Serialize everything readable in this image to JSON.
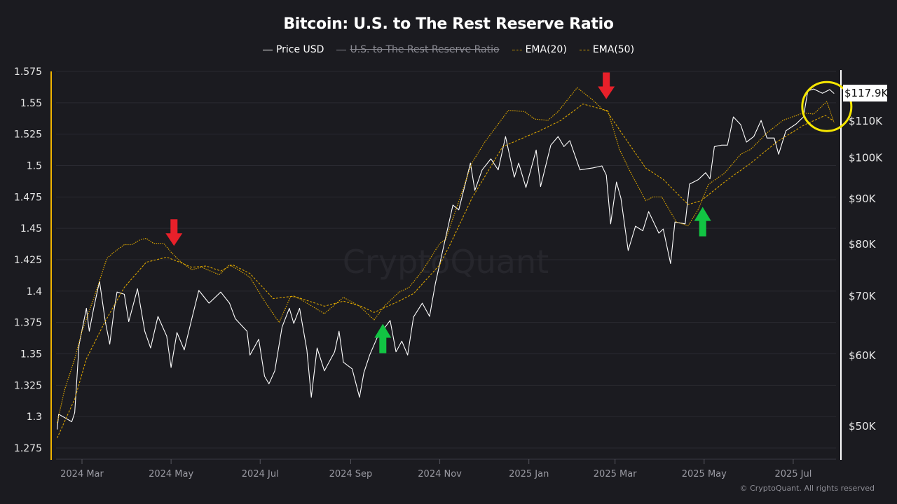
{
  "chart_data": {
    "type": "line",
    "title": "Bitcoin: U.S. to The Rest Reserve Ratio",
    "legend": [
      {
        "name": "Price USD",
        "color": "#ffffff",
        "style": "solid",
        "visible": true
      },
      {
        "name": "U.S. to The Rest Reserve Ratio",
        "color": "#8a8a92",
        "style": "solid",
        "visible": false
      },
      {
        "name": "EMA(20)",
        "color": "#d9a300",
        "style": "dotted",
        "visible": true
      },
      {
        "name": "EMA(50)",
        "color": "#d9a300",
        "style": "dashed",
        "visible": true
      }
    ],
    "legend_position": "top-center",
    "grid": true,
    "x_axis": {
      "type": "date",
      "ticks": [
        "2024 Mar",
        "2024 May",
        "2024 Jul",
        "2024 Sep",
        "2024 Nov",
        "2025 Jan",
        "2025 Mar",
        "2025 May",
        "2025 Jul"
      ],
      "tick_dates": [
        "2024-03-01",
        "2024-05-01",
        "2024-07-01",
        "2024-09-01",
        "2024-11-01",
        "2025-01-01",
        "2025-03-01",
        "2025-05-01",
        "2025-07-01"
      ]
    },
    "y_left": {
      "range": [
        1.275,
        1.575
      ],
      "ticks": [
        "1.575",
        "1.55",
        "1.525",
        "1.5",
        "1.475",
        "1.45",
        "1.425",
        "1.4",
        "1.375",
        "1.35",
        "1.325",
        "1.3",
        "1.275"
      ],
      "color": "#f0b400"
    },
    "y_right": {
      "scale": "log",
      "ticks": [
        "$50K",
        "$60K",
        "$70K",
        "$80K",
        "$90K",
        "$100K",
        "$110K"
      ],
      "tick_values": [
        50000,
        60000,
        70000,
        80000,
        90000,
        100000,
        110000
      ],
      "color": "#ffffff"
    },
    "last_price_label": "$117.9K",
    "series": [
      {
        "name": "Price USD",
        "axis": "right",
        "points": [
          [
            "2024-02-13",
            49500
          ],
          [
            "2024-02-14",
            51500
          ],
          [
            "2024-02-23",
            50500
          ],
          [
            "2024-02-25",
            51700
          ],
          [
            "2024-02-28",
            61600
          ],
          [
            "2024-03-04",
            67700
          ],
          [
            "2024-03-06",
            63800
          ],
          [
            "2024-03-09",
            67700
          ],
          [
            "2024-03-13",
            72600
          ],
          [
            "2024-03-17",
            65400
          ],
          [
            "2024-03-20",
            61700
          ],
          [
            "2024-03-23",
            67400
          ],
          [
            "2024-03-25",
            70600
          ],
          [
            "2024-03-30",
            70200
          ],
          [
            "2024-04-02",
            65400
          ],
          [
            "2024-04-08",
            71200
          ],
          [
            "2024-04-13",
            63800
          ],
          [
            "2024-04-17",
            61100
          ],
          [
            "2024-04-22",
            66300
          ],
          [
            "2024-04-28",
            63000
          ],
          [
            "2024-05-01",
            58100
          ],
          [
            "2024-05-05",
            63600
          ],
          [
            "2024-05-10",
            60800
          ],
          [
            "2024-05-15",
            65700
          ],
          [
            "2024-05-20",
            70900
          ],
          [
            "2024-05-27",
            68600
          ],
          [
            "2024-06-04",
            70600
          ],
          [
            "2024-06-10",
            68600
          ],
          [
            "2024-06-14",
            65900
          ],
          [
            "2024-06-22",
            63800
          ],
          [
            "2024-06-24",
            60000
          ],
          [
            "2024-06-30",
            62500
          ],
          [
            "2024-07-04",
            56800
          ],
          [
            "2024-07-07",
            55700
          ],
          [
            "2024-07-11",
            57600
          ],
          [
            "2024-07-16",
            64500
          ],
          [
            "2024-07-21",
            67700
          ],
          [
            "2024-07-24",
            65100
          ],
          [
            "2024-07-28",
            67700
          ],
          [
            "2024-08-02",
            60800
          ],
          [
            "2024-08-05",
            53800
          ],
          [
            "2024-08-09",
            61100
          ],
          [
            "2024-08-14",
            57600
          ],
          [
            "2024-08-21",
            60500
          ],
          [
            "2024-08-24",
            63800
          ],
          [
            "2024-08-27",
            58900
          ],
          [
            "2024-09-02",
            57900
          ],
          [
            "2024-09-07",
            53800
          ],
          [
            "2024-09-10",
            57300
          ],
          [
            "2024-09-14",
            60000
          ],
          [
            "2024-09-19",
            62700
          ],
          [
            "2024-09-28",
            65600
          ],
          [
            "2024-10-02",
            60500
          ],
          [
            "2024-10-06",
            62200
          ],
          [
            "2024-10-10",
            60000
          ],
          [
            "2024-10-14",
            66200
          ],
          [
            "2024-10-20",
            68600
          ],
          [
            "2024-10-25",
            66300
          ],
          [
            "2024-10-29",
            72200
          ],
          [
            "2024-11-10",
            88400
          ],
          [
            "2024-11-14",
            87300
          ],
          [
            "2024-11-22",
            98500
          ],
          [
            "2024-11-25",
            91800
          ],
          [
            "2024-11-30",
            96800
          ],
          [
            "2024-12-06",
            99600
          ],
          [
            "2024-12-11",
            96800
          ],
          [
            "2024-12-16",
            105500
          ],
          [
            "2024-12-22",
            95000
          ],
          [
            "2024-12-25",
            98500
          ],
          [
            "2024-12-30",
            92500
          ],
          [
            "2025-01-06",
            101900
          ],
          [
            "2025-01-09",
            92700
          ],
          [
            "2025-01-16",
            103200
          ],
          [
            "2025-01-21",
            105500
          ],
          [
            "2025-01-25",
            102800
          ],
          [
            "2025-01-29",
            104400
          ],
          [
            "2025-02-05",
            96800
          ],
          [
            "2025-02-14",
            97300
          ],
          [
            "2025-02-20",
            97800
          ],
          [
            "2025-02-23",
            95500
          ],
          [
            "2025-02-26",
            84200
          ],
          [
            "2025-03-02",
            93800
          ],
          [
            "2025-03-05",
            90000
          ],
          [
            "2025-03-10",
            78600
          ],
          [
            "2025-03-15",
            83700
          ],
          [
            "2025-03-20",
            82700
          ],
          [
            "2025-03-24",
            86900
          ],
          [
            "2025-03-31",
            82200
          ],
          [
            "2025-04-03",
            83100
          ],
          [
            "2025-04-08",
            76000
          ],
          [
            "2025-04-11",
            84600
          ],
          [
            "2025-04-18",
            84200
          ],
          [
            "2025-04-21",
            93300
          ],
          [
            "2025-04-27",
            94400
          ],
          [
            "2025-05-02",
            96100
          ],
          [
            "2025-05-05",
            94600
          ],
          [
            "2025-05-08",
            102800
          ],
          [
            "2025-05-13",
            103200
          ],
          [
            "2025-05-17",
            103200
          ],
          [
            "2025-05-21",
            111000
          ],
          [
            "2025-05-26",
            108800
          ],
          [
            "2025-05-30",
            104000
          ],
          [
            "2025-06-04",
            105500
          ],
          [
            "2025-06-09",
            110000
          ],
          [
            "2025-06-13",
            105100
          ],
          [
            "2025-06-18",
            105100
          ],
          [
            "2025-06-21",
            100800
          ],
          [
            "2025-06-26",
            107100
          ],
          [
            "2025-07-03",
            109000
          ],
          [
            "2025-07-08",
            111000
          ],
          [
            "2025-07-11",
            118700
          ],
          [
            "2025-07-15",
            119300
          ],
          [
            "2025-07-21",
            118000
          ],
          [
            "2025-07-26",
            119100
          ],
          [
            "2025-07-29",
            117900
          ]
        ]
      },
      {
        "name": "EMA(20)",
        "axis": "left",
        "points": [
          [
            "2024-02-13",
            1.295
          ],
          [
            "2024-02-18",
            1.321
          ],
          [
            "2024-02-25",
            1.346
          ],
          [
            "2024-03-01",
            1.368
          ],
          [
            "2024-03-09",
            1.394
          ],
          [
            "2024-03-18",
            1.426
          ],
          [
            "2024-03-23",
            1.431
          ],
          [
            "2024-03-30",
            1.437
          ],
          [
            "2024-04-04",
            1.437
          ],
          [
            "2024-04-10",
            1.441
          ],
          [
            "2024-04-14",
            1.442
          ],
          [
            "2024-04-19",
            1.438
          ],
          [
            "2024-04-26",
            1.438
          ],
          [
            "2024-05-01",
            1.431
          ],
          [
            "2024-05-07",
            1.424
          ],
          [
            "2024-05-15",
            1.417
          ],
          [
            "2024-05-22",
            1.419
          ],
          [
            "2024-06-03",
            1.413
          ],
          [
            "2024-06-10",
            1.421
          ],
          [
            "2024-06-16",
            1.417
          ],
          [
            "2024-06-24",
            1.411
          ],
          [
            "2024-07-04",
            1.392
          ],
          [
            "2024-07-14",
            1.375
          ],
          [
            "2024-07-22",
            1.396
          ],
          [
            "2024-07-28",
            1.394
          ],
          [
            "2024-08-14",
            1.382
          ],
          [
            "2024-08-27",
            1.395
          ],
          [
            "2024-09-07",
            1.388
          ],
          [
            "2024-09-17",
            1.377
          ],
          [
            "2024-09-24",
            1.388
          ],
          [
            "2024-10-04",
            1.399
          ],
          [
            "2024-10-11",
            1.403
          ],
          [
            "2024-10-20",
            1.416
          ],
          [
            "2024-11-01",
            1.438
          ],
          [
            "2024-11-05",
            1.441
          ],
          [
            "2024-11-23",
            1.502
          ],
          [
            "2024-12-02",
            1.519
          ],
          [
            "2024-12-18",
            1.544
          ],
          [
            "2024-12-29",
            1.543
          ],
          [
            "2025-01-05",
            1.537
          ],
          [
            "2025-01-14",
            1.536
          ],
          [
            "2025-01-21",
            1.543
          ],
          [
            "2025-02-03",
            1.562
          ],
          [
            "2025-02-14",
            1.552
          ],
          [
            "2025-02-21",
            1.544
          ],
          [
            "2025-02-24",
            1.544
          ],
          [
            "2025-03-04",
            1.513
          ],
          [
            "2025-03-11",
            1.496
          ],
          [
            "2025-03-22",
            1.472
          ],
          [
            "2025-03-27",
            1.475
          ],
          [
            "2025-04-02",
            1.475
          ],
          [
            "2025-04-12",
            1.455
          ],
          [
            "2025-04-20",
            1.452
          ],
          [
            "2025-04-27",
            1.465
          ],
          [
            "2025-05-04",
            1.485
          ],
          [
            "2025-05-15",
            1.494
          ],
          [
            "2025-05-26",
            1.509
          ],
          [
            "2025-06-02",
            1.513
          ],
          [
            "2025-06-13",
            1.526
          ],
          [
            "2025-06-24",
            1.536
          ],
          [
            "2025-07-08",
            1.542
          ],
          [
            "2025-07-15",
            1.541
          ],
          [
            "2025-07-24",
            1.551
          ],
          [
            "2025-07-29",
            1.534
          ]
        ]
      },
      {
        "name": "EMA(50)",
        "axis": "left",
        "points": [
          [
            "2024-02-13",
            1.283
          ],
          [
            "2024-02-25",
            1.314
          ],
          [
            "2024-03-04",
            1.346
          ],
          [
            "2024-03-16",
            1.374
          ],
          [
            "2024-03-30",
            1.403
          ],
          [
            "2024-04-14",
            1.423
          ],
          [
            "2024-04-28",
            1.427
          ],
          [
            "2024-05-07",
            1.423
          ],
          [
            "2024-05-15",
            1.419
          ],
          [
            "2024-05-25",
            1.42
          ],
          [
            "2024-06-04",
            1.416
          ],
          [
            "2024-06-12",
            1.421
          ],
          [
            "2024-06-24",
            1.414
          ],
          [
            "2024-07-10",
            1.394
          ],
          [
            "2024-07-24",
            1.396
          ],
          [
            "2024-08-14",
            1.388
          ],
          [
            "2024-08-27",
            1.392
          ],
          [
            "2024-09-08",
            1.388
          ],
          [
            "2024-09-17",
            1.383
          ],
          [
            "2024-10-04",
            1.392
          ],
          [
            "2024-10-14",
            1.398
          ],
          [
            "2024-11-01",
            1.421
          ],
          [
            "2024-11-08",
            1.437
          ],
          [
            "2024-11-23",
            1.474
          ],
          [
            "2024-12-14",
            1.515
          ],
          [
            "2025-01-09",
            1.528
          ],
          [
            "2025-01-23",
            1.536
          ],
          [
            "2025-02-07",
            1.549
          ],
          [
            "2025-02-23",
            1.544
          ],
          [
            "2025-03-09",
            1.52
          ],
          [
            "2025-03-22",
            1.498
          ],
          [
            "2025-04-03",
            1.489
          ],
          [
            "2025-04-20",
            1.469
          ],
          [
            "2025-04-29",
            1.472
          ],
          [
            "2025-05-15",
            1.487
          ],
          [
            "2025-06-02",
            1.502
          ],
          [
            "2025-06-20",
            1.519
          ],
          [
            "2025-07-08",
            1.532
          ],
          [
            "2025-07-23",
            1.54
          ],
          [
            "2025-07-28",
            1.536
          ]
        ]
      }
    ],
    "annotations": [
      {
        "type": "arrow",
        "direction": "down",
        "color": "#e8202a",
        "date": "2024-05-03",
        "value": 1.436
      },
      {
        "type": "arrow",
        "direction": "down",
        "color": "#e8202a",
        "date": "2025-02-23",
        "value": 1.553
      },
      {
        "type": "arrow",
        "direction": "up",
        "color": "#12c443",
        "date": "2024-09-23",
        "value": 1.374
      },
      {
        "type": "arrow",
        "direction": "up",
        "color": "#12c443",
        "date": "2025-04-30",
        "value": 1.467
      },
      {
        "type": "circle",
        "color": "#f5e600",
        "date": "2025-07-24",
        "value": 1.547
      }
    ]
  },
  "watermark": "CryptoQuant",
  "footer": "© CryptoQuant. All rights reserved"
}
